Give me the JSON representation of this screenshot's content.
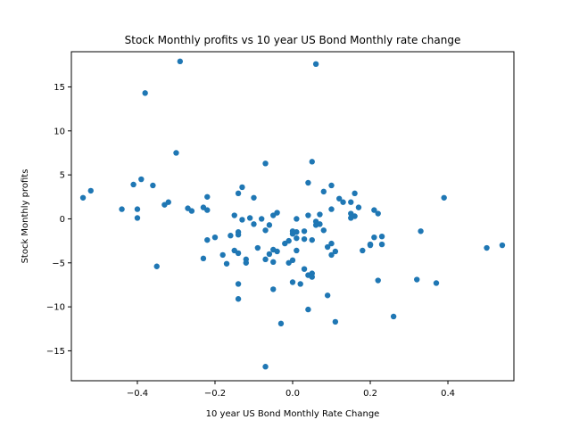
{
  "chart_data": {
    "type": "scatter",
    "title": "Stock Monthly profits vs 10 year US Bond Monthly rate change",
    "xlabel": "10 year US Bond Monthly Rate Change",
    "ylabel": "Stock Monthly profits",
    "xlim": [
      -0.57,
      0.57
    ],
    "ylim": [
      -18.4,
      19.0
    ],
    "xticks": [
      -0.4,
      -0.2,
      0.0,
      0.2,
      0.4
    ],
    "xtick_labels": [
      "−0.4",
      "−0.2",
      "0.0",
      "0.2",
      "0.4"
    ],
    "yticks": [
      -15,
      -10,
      -5,
      0,
      5,
      10,
      15
    ],
    "ytick_labels": [
      "−15",
      "−10",
      "−5",
      "0",
      "5",
      "10",
      "15"
    ],
    "grid": false,
    "colors": {
      "marker": "#1f77b4",
      "axis": "#000000",
      "background": "#ffffff"
    },
    "points": [
      {
        "x": -0.54,
        "y": 2.4
      },
      {
        "x": -0.52,
        "y": 3.2
      },
      {
        "x": -0.44,
        "y": 1.1
      },
      {
        "x": -0.41,
        "y": 3.9
      },
      {
        "x": -0.4,
        "y": 1.1
      },
      {
        "x": -0.4,
        "y": 0.1
      },
      {
        "x": -0.39,
        "y": 4.5
      },
      {
        "x": -0.38,
        "y": 14.3
      },
      {
        "x": -0.36,
        "y": 3.8
      },
      {
        "x": -0.35,
        "y": -5.4
      },
      {
        "x": -0.33,
        "y": 1.6
      },
      {
        "x": -0.32,
        "y": 1.9
      },
      {
        "x": -0.3,
        "y": 7.5
      },
      {
        "x": -0.29,
        "y": 17.9
      },
      {
        "x": -0.27,
        "y": 1.2
      },
      {
        "x": -0.26,
        "y": 0.9
      },
      {
        "x": -0.23,
        "y": 1.3
      },
      {
        "x": -0.23,
        "y": -4.5
      },
      {
        "x": -0.22,
        "y": 2.5
      },
      {
        "x": -0.22,
        "y": 1.0
      },
      {
        "x": -0.22,
        "y": -2.4
      },
      {
        "x": -0.2,
        "y": -2.1
      },
      {
        "x": -0.18,
        "y": -4.1
      },
      {
        "x": -0.17,
        "y": -5.1
      },
      {
        "x": -0.16,
        "y": -1.9
      },
      {
        "x": -0.15,
        "y": 0.4
      },
      {
        "x": -0.15,
        "y": -3.6
      },
      {
        "x": -0.14,
        "y": -1.5
      },
      {
        "x": -0.14,
        "y": -1.8
      },
      {
        "x": -0.14,
        "y": 2.9
      },
      {
        "x": -0.14,
        "y": -3.9
      },
      {
        "x": -0.14,
        "y": -7.4
      },
      {
        "x": -0.14,
        "y": -9.1
      },
      {
        "x": -0.13,
        "y": 3.6
      },
      {
        "x": -0.13,
        "y": -0.1
      },
      {
        "x": -0.12,
        "y": -4.6
      },
      {
        "x": -0.12,
        "y": -5.0
      },
      {
        "x": -0.11,
        "y": 0.1
      },
      {
        "x": -0.1,
        "y": 2.4
      },
      {
        "x": -0.1,
        "y": -0.6
      },
      {
        "x": -0.09,
        "y": -3.3
      },
      {
        "x": -0.08,
        "y": 0.0
      },
      {
        "x": -0.07,
        "y": 6.3
      },
      {
        "x": -0.07,
        "y": -1.3
      },
      {
        "x": -0.07,
        "y": -4.6
      },
      {
        "x": -0.07,
        "y": -16.8
      },
      {
        "x": -0.06,
        "y": -0.7
      },
      {
        "x": -0.06,
        "y": -4.0
      },
      {
        "x": -0.05,
        "y": 0.4
      },
      {
        "x": -0.05,
        "y": -3.5
      },
      {
        "x": -0.05,
        "y": -4.9
      },
      {
        "x": -0.05,
        "y": -8.0
      },
      {
        "x": -0.04,
        "y": 0.7
      },
      {
        "x": -0.04,
        "y": -3.7
      },
      {
        "x": -0.03,
        "y": -11.9
      },
      {
        "x": -0.02,
        "y": -2.8
      },
      {
        "x": -0.01,
        "y": -2.5
      },
      {
        "x": -0.01,
        "y": -5.0
      },
      {
        "x": 0.0,
        "y": -1.4
      },
      {
        "x": 0.0,
        "y": -1.7
      },
      {
        "x": 0.0,
        "y": -4.7
      },
      {
        "x": 0.0,
        "y": -7.2
      },
      {
        "x": 0.01,
        "y": 0.0
      },
      {
        "x": 0.01,
        "y": -1.5
      },
      {
        "x": 0.01,
        "y": -2.2
      },
      {
        "x": 0.01,
        "y": -3.6
      },
      {
        "x": 0.02,
        "y": -7.4
      },
      {
        "x": 0.03,
        "y": -1.4
      },
      {
        "x": 0.03,
        "y": -2.3
      },
      {
        "x": 0.03,
        "y": -5.7
      },
      {
        "x": 0.04,
        "y": 4.1
      },
      {
        "x": 0.04,
        "y": 0.4
      },
      {
        "x": 0.04,
        "y": -6.4
      },
      {
        "x": 0.04,
        "y": -10.3
      },
      {
        "x": 0.05,
        "y": 6.5
      },
      {
        "x": 0.05,
        "y": -2.4
      },
      {
        "x": 0.05,
        "y": -6.2
      },
      {
        "x": 0.05,
        "y": -6.6
      },
      {
        "x": 0.06,
        "y": 17.6
      },
      {
        "x": 0.06,
        "y": -0.3
      },
      {
        "x": 0.06,
        "y": -0.7
      },
      {
        "x": 0.07,
        "y": 0.5
      },
      {
        "x": 0.07,
        "y": -0.6
      },
      {
        "x": 0.08,
        "y": 3.1
      },
      {
        "x": 0.08,
        "y": -1.3
      },
      {
        "x": 0.09,
        "y": -3.2
      },
      {
        "x": 0.09,
        "y": -8.7
      },
      {
        "x": 0.1,
        "y": 3.8
      },
      {
        "x": 0.1,
        "y": 1.1
      },
      {
        "x": 0.1,
        "y": -2.8
      },
      {
        "x": 0.1,
        "y": -4.1
      },
      {
        "x": 0.11,
        "y": -3.7
      },
      {
        "x": 0.11,
        "y": -11.7
      },
      {
        "x": 0.12,
        "y": 2.3
      },
      {
        "x": 0.13,
        "y": 1.9
      },
      {
        "x": 0.15,
        "y": 1.9
      },
      {
        "x": 0.15,
        "y": 0.6
      },
      {
        "x": 0.15,
        "y": 0.1
      },
      {
        "x": 0.16,
        "y": 2.9
      },
      {
        "x": 0.16,
        "y": 0.3
      },
      {
        "x": 0.17,
        "y": 1.3
      },
      {
        "x": 0.18,
        "y": -3.6
      },
      {
        "x": 0.2,
        "y": -2.9
      },
      {
        "x": 0.2,
        "y": -3.0
      },
      {
        "x": 0.21,
        "y": 1.0
      },
      {
        "x": 0.21,
        "y": -2.1
      },
      {
        "x": 0.22,
        "y": 0.6
      },
      {
        "x": 0.22,
        "y": -7.0
      },
      {
        "x": 0.23,
        "y": -2.0
      },
      {
        "x": 0.23,
        "y": -2.9
      },
      {
        "x": 0.26,
        "y": -11.1
      },
      {
        "x": 0.32,
        "y": -6.9
      },
      {
        "x": 0.33,
        "y": -1.4
      },
      {
        "x": 0.37,
        "y": -7.3
      },
      {
        "x": 0.39,
        "y": 2.4
      },
      {
        "x": 0.5,
        "y": -3.3
      },
      {
        "x": 0.54,
        "y": -3.0
      }
    ]
  }
}
